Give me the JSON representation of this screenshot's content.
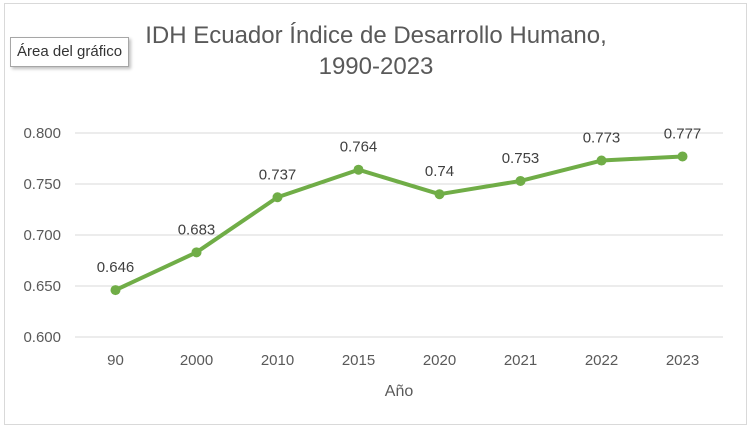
{
  "tooltip": {
    "label": "Área del gráfico"
  },
  "chart_data": {
    "type": "line",
    "title_lines": [
      "IDH Ecuador Índice de Desarrollo Humano,",
      "1990-2023"
    ],
    "categories": [
      "90",
      "2000",
      "2010",
      "2015",
      "2020",
      "2021",
      "2022",
      "2023"
    ],
    "series": [
      {
        "name": "IDH",
        "values": [
          0.646,
          0.683,
          0.737,
          0.764,
          0.74,
          0.753,
          0.773,
          0.777
        ],
        "data_labels": [
          "0.646",
          "0.683",
          "0.737",
          "0.764",
          "0.74",
          "0.753",
          "0.773",
          "0.777"
        ]
      }
    ],
    "xlabel": "Año",
    "ylabel": "",
    "ylim": [
      0.6,
      0.8
    ],
    "yticks": [
      0.6,
      0.65,
      0.7,
      0.75,
      0.8
    ],
    "ytick_labels": [
      "0.600",
      "0.650",
      "0.700",
      "0.750",
      "0.800"
    ],
    "grid": true,
    "legend": "none",
    "line_color": "#70ad47",
    "grid_color": "#d9d9d9"
  }
}
